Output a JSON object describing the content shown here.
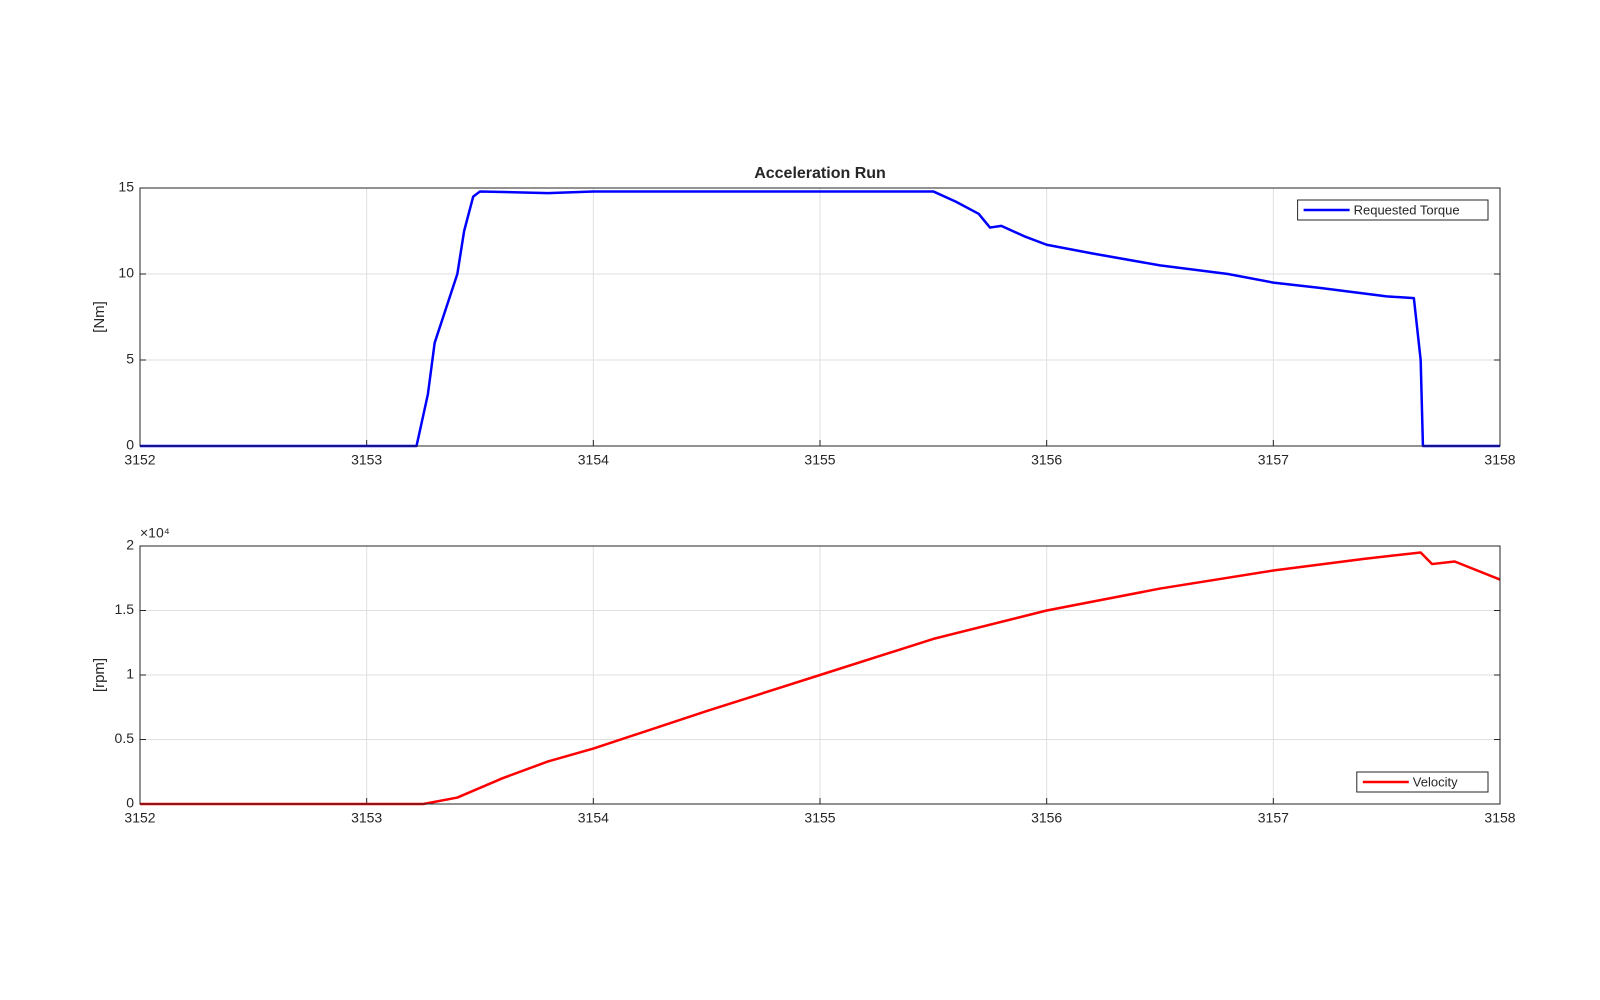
{
  "chart_data": [
    {
      "type": "line",
      "title": "Acceleration Run",
      "ylabel": "[Nm]",
      "x": [
        3152,
        3153.22,
        3153.27,
        3153.3,
        3153.35,
        3153.4,
        3153.43,
        3153.47,
        3153.5,
        3153.8,
        3154,
        3155,
        3155.5,
        3155.6,
        3155.7,
        3155.75,
        3155.8,
        3155.9,
        3156,
        3156.2,
        3156.5,
        3156.8,
        3157,
        3157.2,
        3157.5,
        3157.62,
        3157.65,
        3157.66,
        3158
      ],
      "series": [
        {
          "name": "Requested Torque",
          "color": "#0000ff",
          "values": [
            0,
            0,
            3,
            6,
            8,
            10,
            12.5,
            14.5,
            14.8,
            14.7,
            14.8,
            14.8,
            14.8,
            14.2,
            13.5,
            12.7,
            12.8,
            12.2,
            11.7,
            11.2,
            10.5,
            10,
            9.5,
            9.2,
            8.7,
            8.6,
            5,
            0,
            0
          ]
        }
      ],
      "xlim": [
        3152,
        3158
      ],
      "xticks": [
        3152,
        3153,
        3154,
        3155,
        3156,
        3157,
        3158
      ],
      "ylim": [
        0,
        15
      ],
      "yticks": [
        0,
        5,
        10,
        15
      ],
      "grid": true,
      "legend": "top-right"
    },
    {
      "type": "line",
      "ylabel": "[rpm]",
      "y_multiplier": "×10⁴",
      "x": [
        3152,
        3153.25,
        3153.4,
        3153.6,
        3153.8,
        3154,
        3154.5,
        3155,
        3155.5,
        3156,
        3156.5,
        3157,
        3157.4,
        3157.65,
        3157.7,
        3157.8,
        3158
      ],
      "series": [
        {
          "name": "Velocity",
          "color": "#ff0000",
          "values": [
            0,
            0,
            0.05,
            0.2,
            0.33,
            0.43,
            0.72,
            1.0,
            1.28,
            1.5,
            1.67,
            1.81,
            1.9,
            1.95,
            1.86,
            1.88,
            1.74
          ]
        }
      ],
      "xlim": [
        3152,
        3158
      ],
      "xticks": [
        3152,
        3153,
        3154,
        3155,
        3156,
        3157,
        3158
      ],
      "ylim": [
        0,
        2
      ],
      "yticks": [
        0,
        0.5,
        1,
        1.5,
        2
      ],
      "grid": true,
      "legend": "bottom-right"
    }
  ]
}
